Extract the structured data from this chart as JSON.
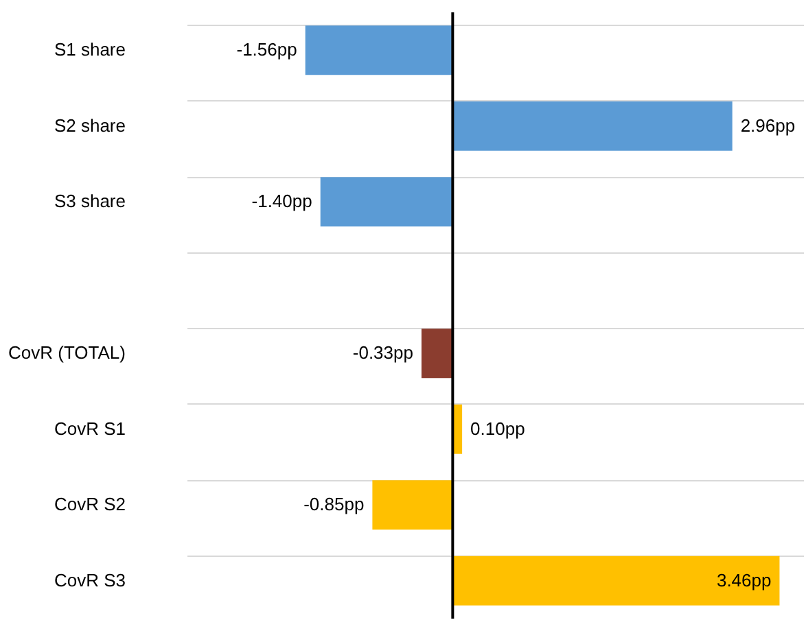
{
  "chart_data": {
    "type": "bar",
    "orientation": "horizontal",
    "categories": [
      "S1 share",
      "S2 share",
      "S3 share",
      null,
      "CovR (TOTAL)",
      "CovR S1",
      "CovR S2",
      "CovR S3"
    ],
    "values": [
      -1.56,
      2.96,
      -1.4,
      null,
      -0.33,
      0.1,
      -0.85,
      3.46
    ],
    "colors": [
      "#5b9bd5",
      "#5b9bd5",
      "#5b9bd5",
      null,
      "#8b3d2f",
      "#ffc000",
      "#ffc000",
      "#ffc000"
    ],
    "value_labels": [
      "-1.56pp",
      "2.96pp",
      "-1.40pp",
      null,
      "-0.33pp",
      "0.10pp",
      "-0.85pp",
      "3.46pp"
    ],
    "grid": "y",
    "tick_labels": "y"
  }
}
